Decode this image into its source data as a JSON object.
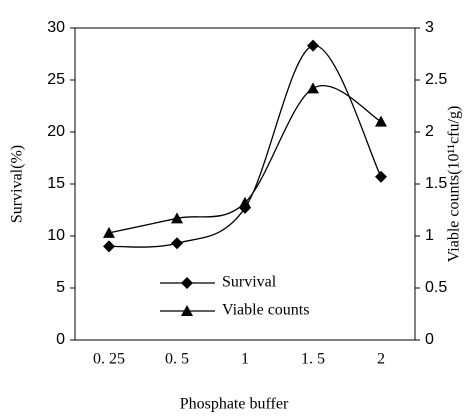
{
  "chart_data": {
    "type": "line",
    "xlabel": "Phosphate buffer",
    "ylabel": "Survival(%)",
    "y2label": "Viable counts(10¹¹cfu/g)",
    "categories": [
      "0. 25",
      "0. 5",
      "1",
      "1. 5",
      "2"
    ],
    "series": [
      {
        "name": "Survival",
        "color": "#000000",
        "marker": "diamond",
        "values": [
          9,
          9.3,
          12.7,
          28.3,
          15.7
        ]
      },
      {
        "name": "Viable counts",
        "color": "#000000",
        "marker": "triangle",
        "axis": "y2",
        "values": [
          1.03,
          1.17,
          1.32,
          2.42,
          2.1
        ]
      }
    ],
    "ylim": [
      0,
      30
    ],
    "yticks": [
      0,
      5,
      10,
      15,
      20,
      25,
      30
    ],
    "y2lim": [
      0,
      3
    ],
    "y2ticks": [
      0,
      0.5,
      1,
      1.5,
      2,
      2.5,
      3
    ],
    "legend": "lower center",
    "grid": false
  }
}
